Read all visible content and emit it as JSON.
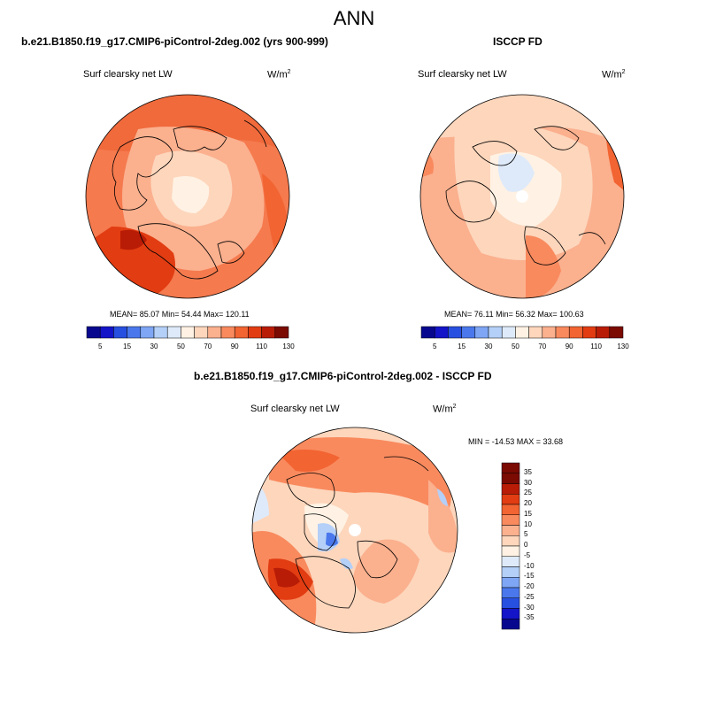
{
  "main_title": "ANN",
  "panels": [
    {
      "title": "b.e21.B1850.f19_g17.CMIP6-piControl-2deg.002 (yrs 900-999)",
      "variable": "Surf clearsky net LW",
      "units": "W/m",
      "units_exp": "2",
      "stats": "MEAN=  85.07  Min=  54.44  Max= 120.11",
      "colorbar_ticks": [
        "5",
        "15",
        "30",
        "50",
        "70",
        "90",
        "110",
        "130"
      ]
    },
    {
      "title": "ISCCP FD",
      "variable": "Surf clearsky net LW",
      "units": "W/m",
      "units_exp": "2",
      "stats": "MEAN=  76.11  Min=  56.32  Max= 100.63",
      "colorbar_ticks": [
        "5",
        "15",
        "30",
        "50",
        "70",
        "90",
        "110",
        "130"
      ]
    },
    {
      "title": "b.e21.B1850.f19_g17.CMIP6-piControl-2deg.002 - ISCCP FD",
      "variable": "Surf clearsky net LW",
      "units": "W/m",
      "units_exp": "2",
      "stats": "MIN = -14.53 MAX =  33.68",
      "colorbar_ticks": [
        "35",
        "30",
        "25",
        "20",
        "15",
        "10",
        "5",
        "0",
        "-5",
        "-10",
        "-15",
        "-20",
        "-25",
        "-30",
        "-35"
      ]
    }
  ],
  "colors": {
    "abs_scale": [
      "#08088f",
      "#1414c8",
      "#2850e0",
      "#4a78ec",
      "#7ea6f4",
      "#b4cff8",
      "#deeafa",
      "#fff2e4",
      "#fdd6bc",
      "#fbb08e",
      "#f98a5e",
      "#f26432",
      "#e23c12",
      "#b81c06",
      "#7a0a02"
    ],
    "diff_scale": [
      "#7a0a02",
      "#b81c06",
      "#e23c12",
      "#f26432",
      "#f98a5e",
      "#fbb08e",
      "#fdd6bc",
      "#fff2e4",
      "#deeafa",
      "#b4cff8",
      "#7ea6f4",
      "#4a78ec",
      "#2850e0",
      "#1414c8",
      "#08088f"
    ]
  }
}
